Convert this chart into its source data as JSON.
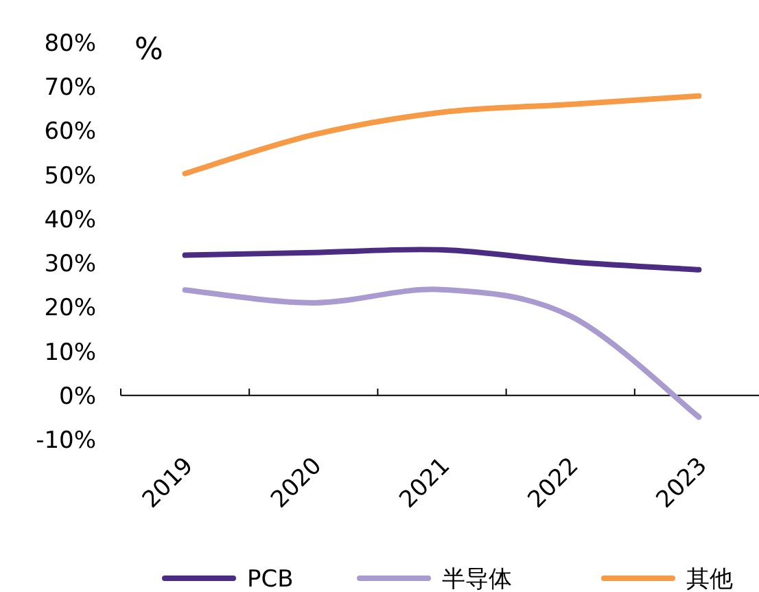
{
  "chart_data": {
    "type": "line",
    "ylabel": "%",
    "categories": [
      "2019",
      "2020",
      "2021",
      "2022",
      "2023"
    ],
    "series": [
      {
        "name": "PCB",
        "color": "#4b2c82",
        "values": [
          31.8,
          32.4,
          33.0,
          30.3,
          28.5
        ]
      },
      {
        "name": "半导体",
        "color": "#a99bd0",
        "values": [
          23.9,
          21.0,
          24.0,
          18.0,
          -4.9
        ]
      },
      {
        "name": "其他",
        "color": "#f79a45",
        "values": [
          50.3,
          59.1,
          64.2,
          66.0,
          67.9
        ]
      }
    ],
    "ylim": [
      -10,
      80
    ],
    "yticks": [
      {
        "value": -10,
        "label": "-10%"
      },
      {
        "value": 0,
        "label": "0%"
      },
      {
        "value": 10,
        "label": "10%"
      },
      {
        "value": 20,
        "label": "20%"
      },
      {
        "value": 30,
        "label": "30%"
      },
      {
        "value": 40,
        "label": "40%"
      },
      {
        "value": 50,
        "label": "50%"
      },
      {
        "value": 60,
        "label": "60%"
      },
      {
        "value": 70,
        "label": "70%"
      },
      {
        "value": 80,
        "label": "80%"
      }
    ],
    "grid": false,
    "legend": "bottom",
    "marker": "none",
    "line_style": "solid"
  }
}
